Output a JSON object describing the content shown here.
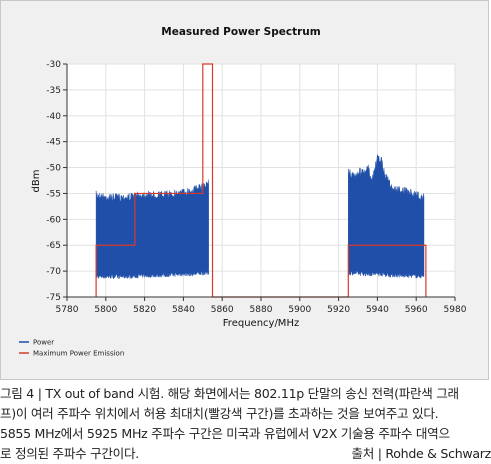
{
  "chart_data": {
    "type": "line",
    "title": "Measured Power Spectrum",
    "xlabel": "Frequency/MHz",
    "ylabel": "dBm",
    "xlim": [
      5780,
      5980
    ],
    "ylim": [
      -75,
      -30
    ],
    "x_ticks": [
      5780,
      5800,
      5820,
      5840,
      5860,
      5880,
      5900,
      5920,
      5940,
      5960,
      5980
    ],
    "y_ticks": [
      -30,
      -35,
      -40,
      -45,
      -50,
      -55,
      -60,
      -65,
      -70,
      -75
    ],
    "grid": true,
    "legend_position": "bottom-left",
    "series": [
      {
        "name": "Power",
        "color": "#1f4fa8",
        "style": "filled noise band",
        "segments": [
          {
            "x": [
              5795,
              5800,
              5810,
              5820,
              5830,
              5840,
              5845,
              5850,
              5852,
              5853
            ],
            "upper": [
              -54.5,
              -55,
              -55,
              -54.5,
              -54.5,
              -54,
              -53.5,
              -53,
              -52.5,
              -52
            ],
            "lower": [
              -71.5,
              -71.5,
              -71.5,
              -71.3,
              -71.2,
              -71,
              -71,
              -70.8,
              -70.8,
              -70.8
            ]
          },
          {
            "x": [
              5925,
              5928,
              5931,
              5934,
              5935,
              5937,
              5940,
              5942,
              5944,
              5946,
              5948,
              5952,
              5956,
              5960,
              5964
            ],
            "upper": [
              -50,
              -51,
              -50,
              -50.5,
              -49,
              -52,
              -47.5,
              -47.8,
              -51,
              -52,
              -53.5,
              -53.5,
              -54,
              -54.5,
              -55
            ],
            "lower": [
              -70.8,
              -70.8,
              -70.9,
              -71,
              -71,
              -71,
              -71,
              -71,
              -71.1,
              -71.2,
              -71.2,
              -71.3,
              -71.3,
              -71.4,
              -71.4
            ]
          }
        ]
      },
      {
        "name": "Maximum Power Emission",
        "color": "#d73a2a",
        "x": [
          5795,
          5795,
          5815,
          5815,
          5850,
          5850,
          5855,
          5855,
          5925,
          5925,
          5965,
          5965
        ],
        "y": [
          -75,
          -65,
          -65,
          -55,
          -55,
          -30,
          -30,
          -75,
          -75,
          -65,
          -65,
          -75
        ]
      }
    ]
  },
  "caption": {
    "line1": "그림 4 | TX out of band 시험. 해당 화면에서는 802.11p 단말의 송신 전력(파란색 그래",
    "line2": "프)이 여러 주파수 위치에서 허용 최대치(빨강색 구간)를 초과하는 것을 보여주고 있다.",
    "line3": "5855 MHz에서 5925 MHz 주파수 구간은 미국과 유럽에서 V2X 기술용 주파수 대역으",
    "line4": "로 정의된 주파수 구간이다.",
    "source": "출처 | Rohde & Schwarz"
  }
}
